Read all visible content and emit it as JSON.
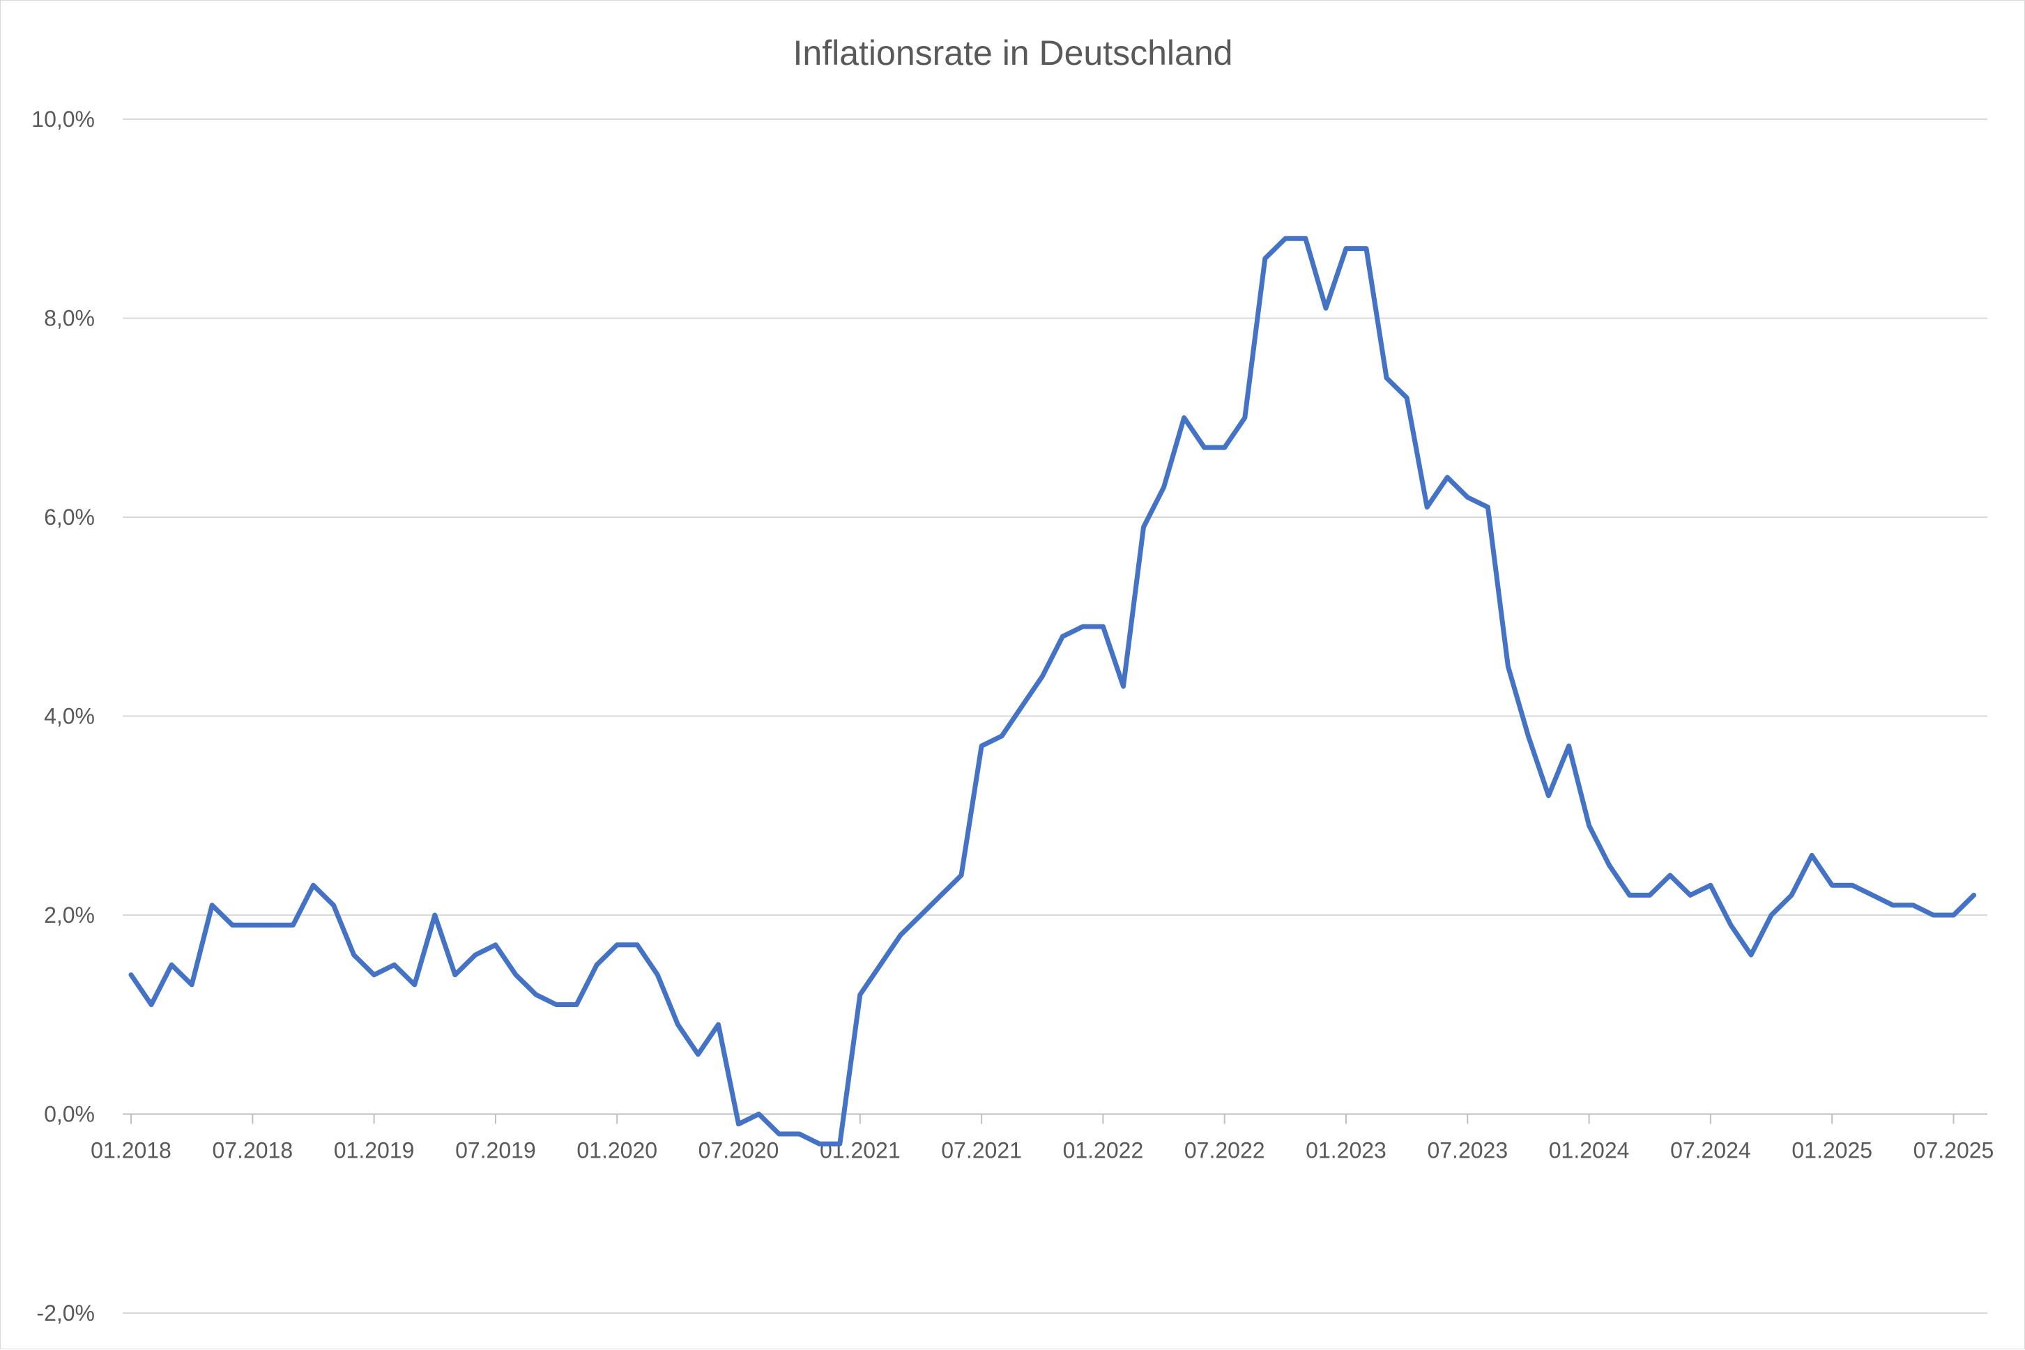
{
  "chart_data": {
    "type": "line",
    "title": "Inflationsrate in Deutschland",
    "xlabel": "",
    "ylabel": "",
    "ylim": [
      -2.0,
      10.0
    ],
    "yticks": [
      {
        "value": -2.0,
        "label": "-2,0%"
      },
      {
        "value": 0.0,
        "label": "0,0%"
      },
      {
        "value": 2.0,
        "label": "2,0%"
      },
      {
        "value": 4.0,
        "label": "4,0%"
      },
      {
        "value": 6.0,
        "label": "6,0%"
      },
      {
        "value": 8.0,
        "label": "8,0%"
      },
      {
        "value": 10.0,
        "label": "10,0%"
      }
    ],
    "xticks": [
      "01.2018",
      "07.2018",
      "01.2019",
      "07.2019",
      "01.2020",
      "07.2020",
      "01.2021",
      "07.2021",
      "01.2022",
      "07.2022",
      "01.2023",
      "07.2023",
      "01.2024",
      "07.2024",
      "01.2025",
      "07.2025"
    ],
    "grid": true,
    "legend": "none",
    "line_color": "#4472c4",
    "x": [
      "01.2018",
      "02.2018",
      "03.2018",
      "04.2018",
      "05.2018",
      "06.2018",
      "07.2018",
      "08.2018",
      "09.2018",
      "10.2018",
      "11.2018",
      "12.2018",
      "01.2019",
      "02.2019",
      "03.2019",
      "04.2019",
      "05.2019",
      "06.2019",
      "07.2019",
      "08.2019",
      "09.2019",
      "10.2019",
      "11.2019",
      "12.2019",
      "01.2020",
      "02.2020",
      "03.2020",
      "04.2020",
      "05.2020",
      "06.2020",
      "07.2020",
      "08.2020",
      "09.2020",
      "10.2020",
      "11.2020",
      "12.2020",
      "01.2021",
      "02.2021",
      "03.2021",
      "04.2021",
      "05.2021",
      "06.2021",
      "07.2021",
      "08.2021",
      "09.2021",
      "10.2021",
      "11.2021",
      "12.2021",
      "01.2022",
      "02.2022",
      "03.2022",
      "04.2022",
      "05.2022",
      "06.2022",
      "07.2022",
      "08.2022",
      "09.2022",
      "10.2022",
      "11.2022",
      "12.2022",
      "01.2023",
      "02.2023",
      "03.2023",
      "04.2023",
      "05.2023",
      "06.2023",
      "07.2023",
      "08.2023",
      "09.2023",
      "10.2023",
      "11.2023",
      "12.2023",
      "01.2024",
      "02.2024",
      "03.2024",
      "04.2024",
      "05.2024",
      "06.2024",
      "07.2024",
      "08.2024",
      "09.2024",
      "10.2024",
      "11.2024",
      "12.2024",
      "01.2025",
      "02.2025",
      "03.2025",
      "04.2025",
      "05.2025",
      "06.2025",
      "07.2025",
      "08.2025"
    ],
    "series": [
      {
        "values": [
          1.4,
          1.1,
          1.5,
          1.3,
          2.1,
          1.9,
          1.9,
          1.9,
          1.9,
          2.3,
          2.1,
          1.6,
          1.4,
          1.5,
          1.3,
          2.0,
          1.4,
          1.6,
          1.7,
          1.4,
          1.2,
          1.1,
          1.1,
          1.5,
          1.7,
          1.7,
          1.4,
          0.9,
          0.6,
          0.9,
          -0.1,
          0.0,
          -0.2,
          -0.2,
          -0.3,
          -0.3,
          1.2,
          1.5,
          1.8,
          2.0,
          2.2,
          2.4,
          3.7,
          3.8,
          4.1,
          4.4,
          4.8,
          4.9,
          4.9,
          4.3,
          5.9,
          6.3,
          7.0,
          6.7,
          6.7,
          7.0,
          8.6,
          8.8,
          8.8,
          8.1,
          8.7,
          8.7,
          7.4,
          7.2,
          6.1,
          6.4,
          6.2,
          6.1,
          4.5,
          3.8,
          3.2,
          3.7,
          2.9,
          2.5,
          2.2,
          2.2,
          2.4,
          2.2,
          2.3,
          1.9,
          1.6,
          2.0,
          2.2,
          2.6,
          2.3,
          2.3,
          2.2,
          2.1,
          2.1,
          2.0,
          2.0,
          2.2
        ]
      }
    ]
  }
}
